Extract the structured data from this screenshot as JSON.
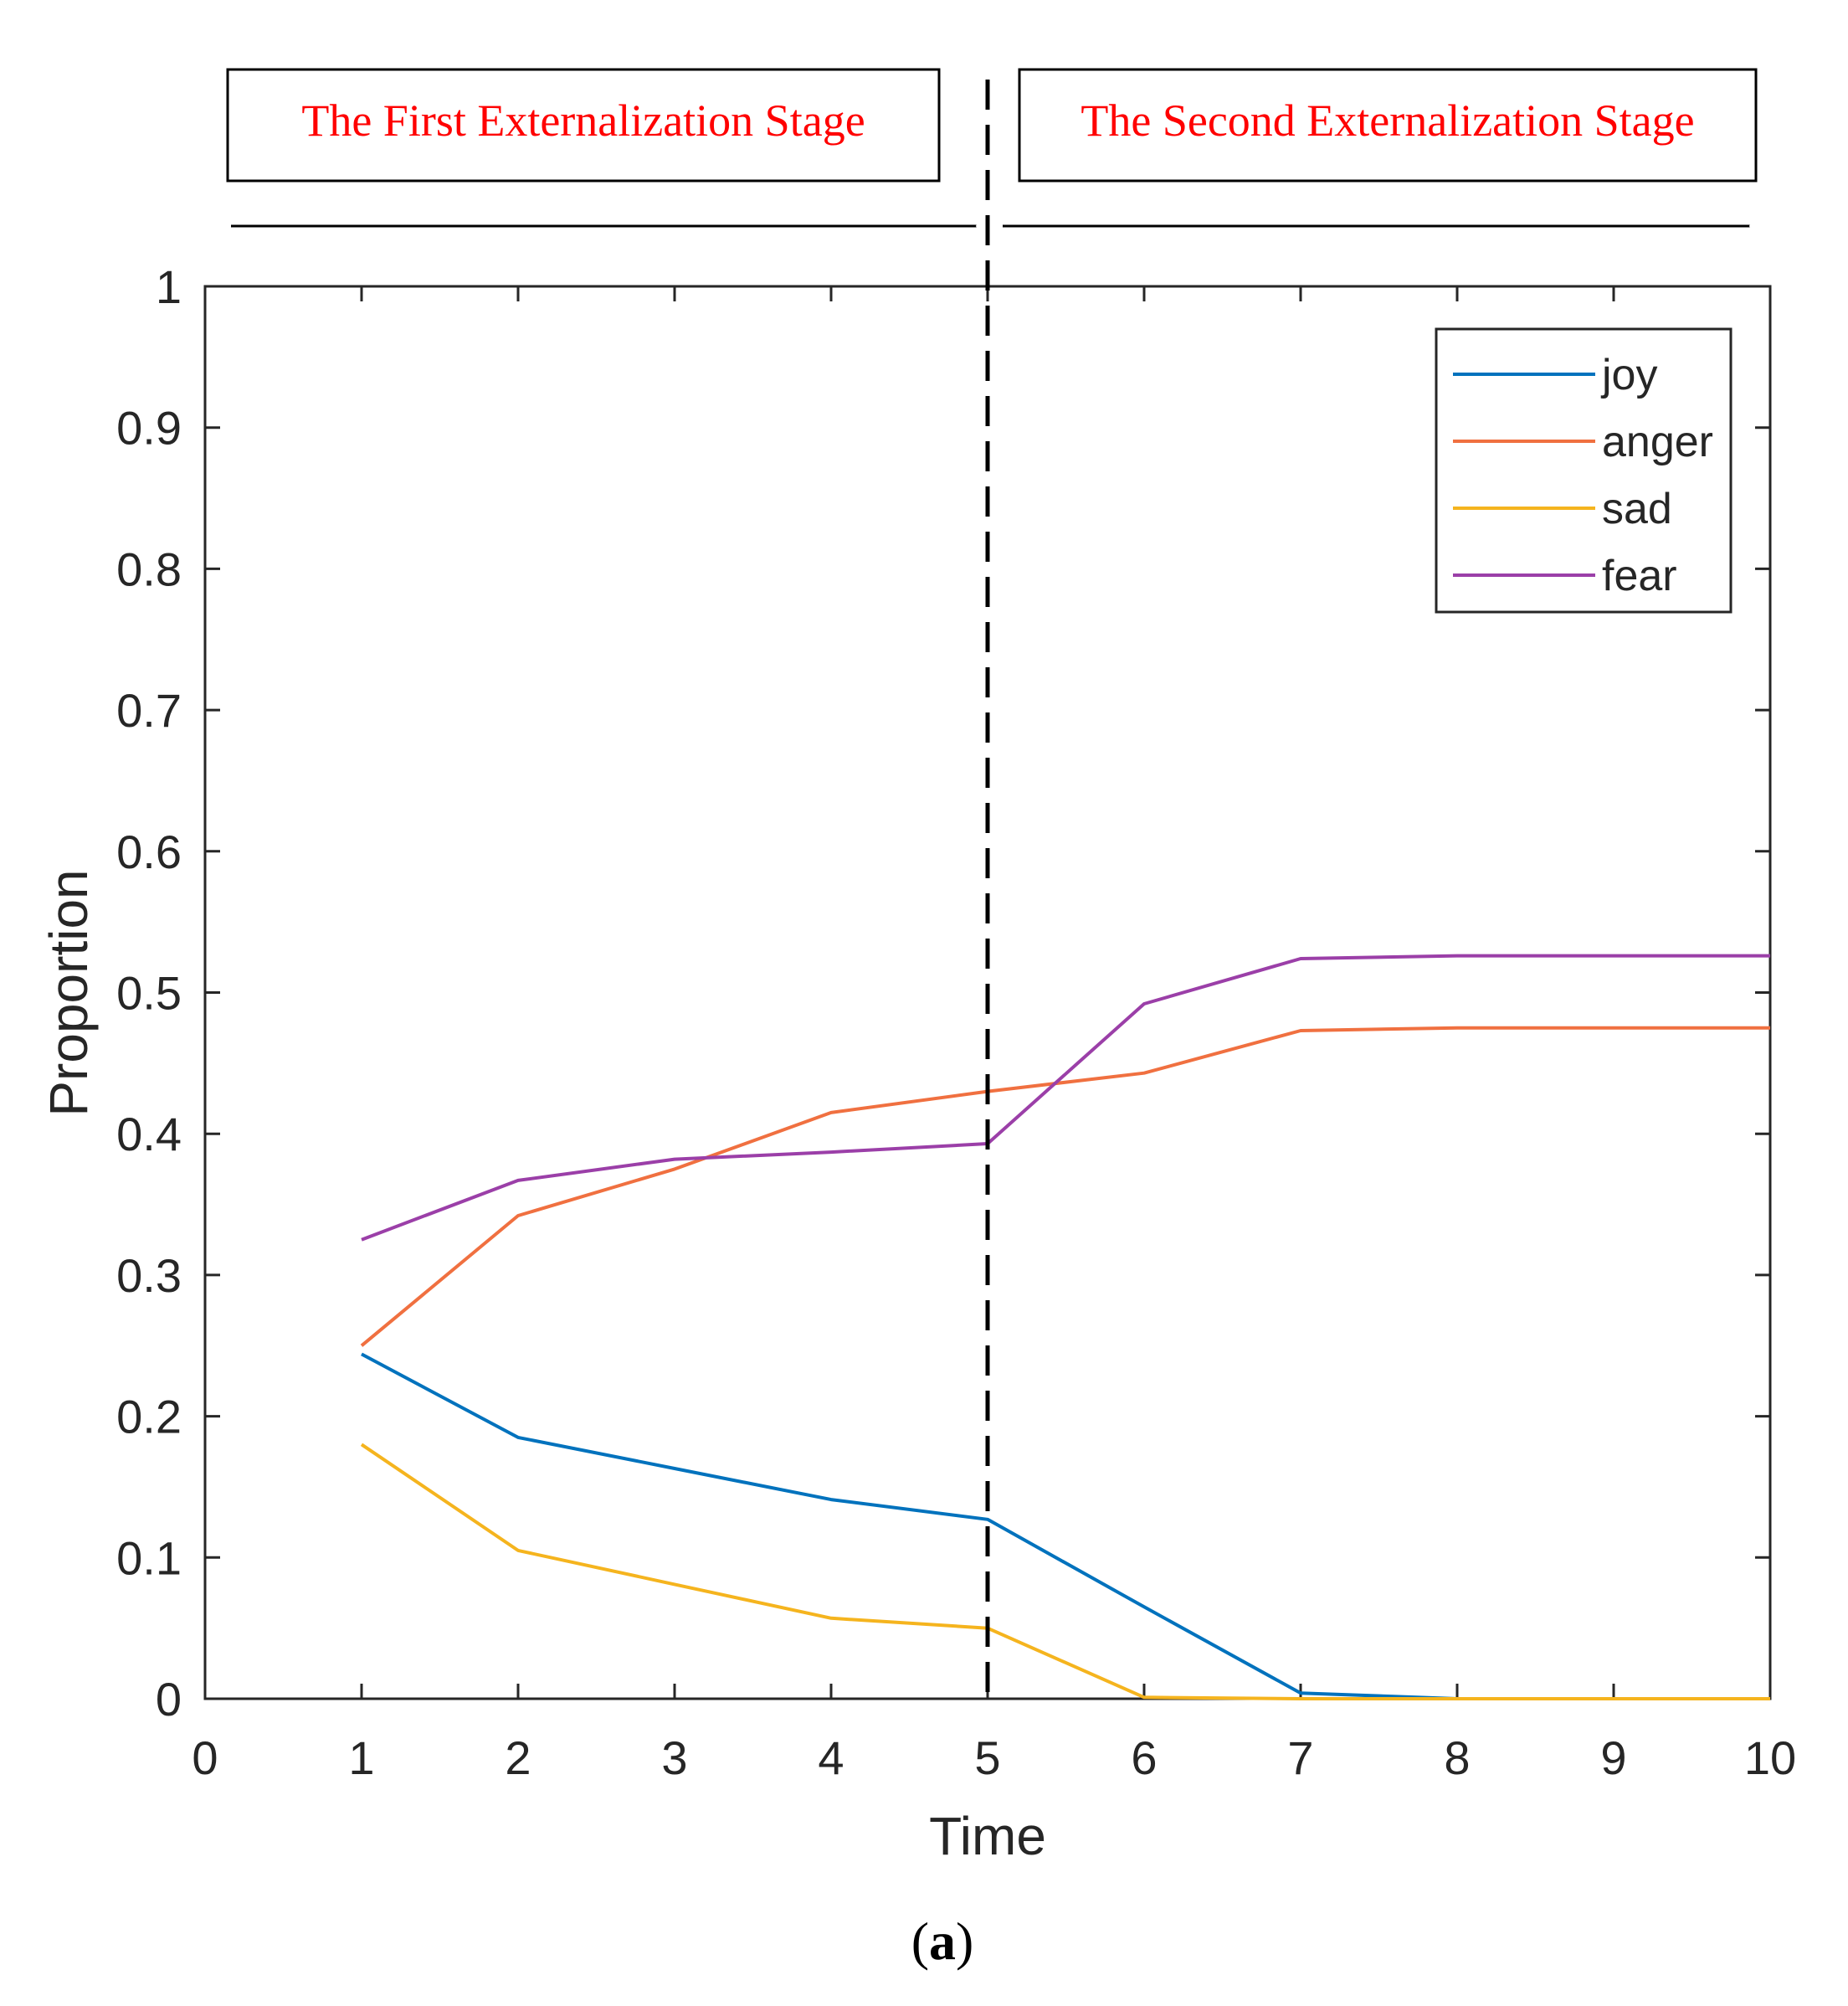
{
  "stages": {
    "first": "The First Externalization Stage",
    "second": "The Second Externalization Stage"
  },
  "caption": {
    "open": "(",
    "letter": "a",
    "close": ")"
  },
  "chart_data": {
    "type": "line",
    "title": "",
    "xlabel": "Time",
    "ylabel": "Proportion",
    "xlim": [
      0,
      10
    ],
    "ylim": [
      0,
      1
    ],
    "xticks": [
      0,
      1,
      2,
      3,
      4,
      5,
      6,
      7,
      8,
      9,
      10
    ],
    "xtick_labels": [
      "0",
      "1",
      "2",
      "3",
      "4",
      "5",
      "6",
      "7",
      "8",
      "9",
      "10"
    ],
    "yticks": [
      0,
      0.1,
      0.2,
      0.3,
      0.4,
      0.5,
      0.6,
      0.7,
      0.8,
      0.9,
      1
    ],
    "ytick_labels": [
      "0",
      "0.1",
      "0.2",
      "0.3",
      "0.4",
      "0.5",
      "0.6",
      "0.7",
      "0.8",
      "0.9",
      "1"
    ],
    "grid": false,
    "legend_position": "top-right",
    "stage_divider_x": 5,
    "x": [
      1,
      2,
      3,
      4,
      5,
      6,
      7,
      8,
      9,
      10
    ],
    "series": [
      {
        "name": "joy",
        "color": "#0072BD",
        "values": [
          0.244,
          0.185,
          0.163,
          0.141,
          0.127,
          0.065,
          0.004,
          0.0,
          0.0,
          0.0
        ]
      },
      {
        "name": "anger",
        "color": "#F07040",
        "values": [
          0.25,
          0.342,
          0.375,
          0.415,
          0.43,
          0.443,
          0.473,
          0.475,
          0.475,
          0.475
        ]
      },
      {
        "name": "sad",
        "color": "#F5B41E",
        "values": [
          0.18,
          0.105,
          0.081,
          0.057,
          0.05,
          0.001,
          0.0,
          0.0,
          0.0,
          0.0
        ]
      },
      {
        "name": "fear",
        "color": "#9B3FA8",
        "values": [
          0.325,
          0.367,
          0.382,
          0.387,
          0.393,
          0.492,
          0.524,
          0.526,
          0.526,
          0.526
        ]
      }
    ]
  }
}
